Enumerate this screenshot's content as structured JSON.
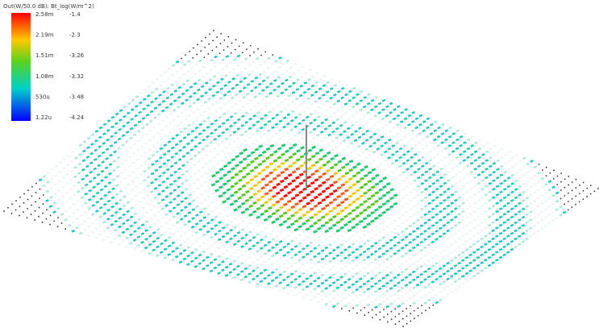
{
  "legend": {
    "header": "Out(W/50.0 dB):  Bt_log(W/m^2)",
    "rows": [
      [
        "2.58m",
        "-1.4"
      ],
      [
        "2.19m",
        "-2.3"
      ],
      [
        "1.51m",
        "-3.26"
      ],
      [
        "1.08m",
        "-3.32"
      ],
      [
        "530u",
        "-3.48"
      ],
      [
        "1.22u",
        "-4.24"
      ]
    ]
  }
}
